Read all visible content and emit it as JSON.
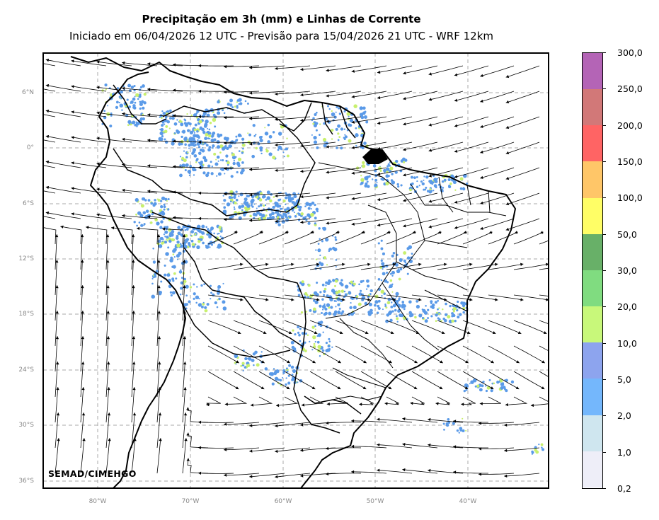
{
  "header": {
    "title": "Precipitação em 3h (mm) e Linhas de Corrente",
    "subtitle": "Iniciado em 06/04/2026 12 UTC - Previsão para 15/04/2026 21 UTC - WRF 12km"
  },
  "map": {
    "lat_labels": [
      "6°N",
      "0°",
      "6°S",
      "12°S",
      "18°S",
      "24°S",
      "30°S",
      "36°S"
    ],
    "lon_labels": [
      "80°W",
      "70°W",
      "60°W",
      "50°W",
      "40°W"
    ],
    "credit": "SEMAD/CIMEHGO",
    "grid": true,
    "colors": {
      "precip_blue": "#5a9ae8",
      "precip_green": "#c8f06e",
      "streamline": "#000000",
      "border": "#000000"
    }
  },
  "colorbar": {
    "labels": [
      "0,2",
      "1,0",
      "2,0",
      "5,0",
      "10,0",
      "20,0",
      "30,0",
      "50,0",
      "100,0",
      "150,0",
      "200,0",
      "250,0",
      "300,0"
    ],
    "colors": [
      "#eeeef8",
      "#cfe6ef",
      "#74b7fc",
      "#8da4ee",
      "#c8f87a",
      "#80dc80",
      "#68b068",
      "#fffe66",
      "#ffc668",
      "#ff6464",
      "#d27878",
      "#b464b6"
    ]
  }
}
